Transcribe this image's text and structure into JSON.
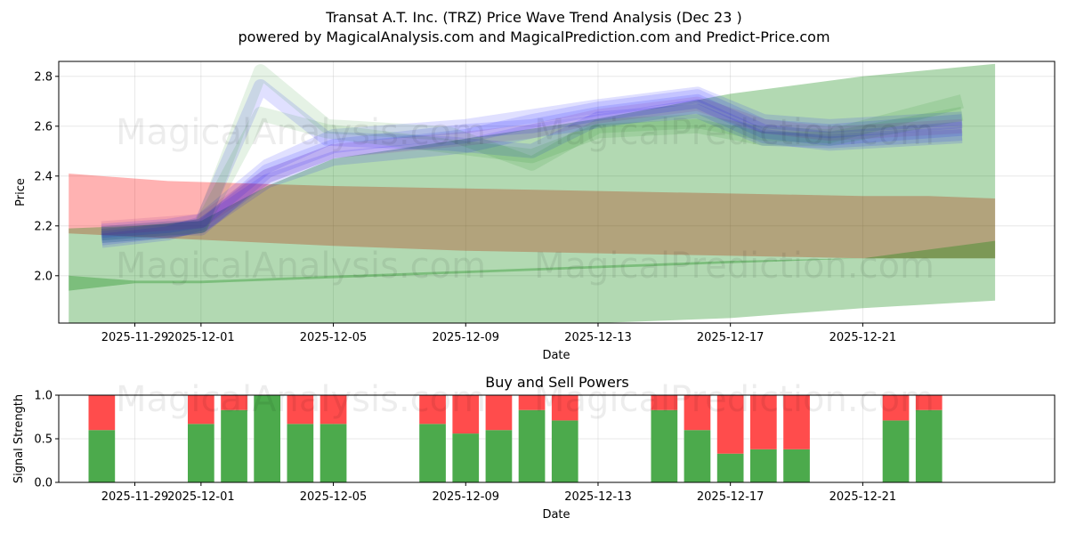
{
  "chart_data": [
    {
      "type": "area",
      "title_line1": "Transat A.T. Inc. (TRZ) Price Wave Trend Analysis (Dec 23 )",
      "title_line2": "powered by MagicalAnalysis.com and MagicalPrediction.com and Predict-Price.com",
      "xlabel": "Date",
      "ylabel": "Price",
      "ylim": [
        1.81,
        2.86
      ],
      "yticks": [
        2.0,
        2.2,
        2.4,
        2.6,
        2.8
      ],
      "ytick_labels": [
        "2.0",
        "2.2",
        "2.4",
        "2.6",
        "2.8"
      ],
      "xlim_days": [
        -4.3,
        25.8
      ],
      "xticks_days": [
        -2,
        0,
        4,
        8,
        12,
        16,
        20
      ],
      "xtick_labels": [
        "2025-11-29",
        "2025-12-01",
        "2025-12-05",
        "2025-12-09",
        "2025-12-13",
        "2025-12-17",
        "2025-12-21"
      ],
      "day_zero": "2025-12-01",
      "grid": true,
      "watermarks": [
        "MagicalAnalysis.com",
        "MagicalPrediction.com"
      ],
      "bands": [
        {
          "name": "sell-band",
          "color": "#ff0000",
          "opacity": 0.3,
          "x": [
            -4,
            -1,
            4,
            8,
            12,
            16,
            20,
            22,
            24
          ],
          "upper": [
            2.41,
            2.38,
            2.36,
            2.35,
            2.34,
            2.33,
            2.32,
            2.32,
            2.31
          ],
          "lower": [
            2.17,
            2.15,
            2.12,
            2.1,
            2.09,
            2.08,
            2.07,
            2.07,
            2.07
          ]
        },
        {
          "name": "buy-band-wide",
          "color": "#008000",
          "opacity": 0.3,
          "x": [
            -4,
            -2,
            0,
            2,
            4,
            8,
            12,
            16,
            20,
            24
          ],
          "upper": [
            2.19,
            2.2,
            2.22,
            2.36,
            2.47,
            2.55,
            2.63,
            2.73,
            2.8,
            2.85
          ],
          "lower": [
            1.8,
            1.8,
            1.8,
            1.8,
            1.8,
            1.8,
            1.8,
            1.83,
            1.87,
            1.9
          ]
        },
        {
          "name": "buy-band-low",
          "color": "#008000",
          "opacity": 0.3,
          "x": [
            -4,
            -2,
            0,
            4,
            8,
            12,
            16,
            20,
            24
          ],
          "upper": [
            2.0,
            1.98,
            1.98,
            2.0,
            2.02,
            2.04,
            2.06,
            2.07,
            2.14
          ],
          "lower": [
            1.94,
            1.97,
            1.97,
            1.99,
            2.01,
            2.03,
            2.05,
            2.07,
            2.07
          ]
        }
      ],
      "wave_series": [
        {
          "name": "wave-1",
          "color": "#0000ff",
          "opacity": 0.12,
          "x": [
            -3,
            -1,
            0,
            2,
            4,
            8,
            10,
            12,
            15,
            17,
            19,
            23
          ],
          "y": [
            2.15,
            2.18,
            2.2,
            2.4,
            2.5,
            2.56,
            2.62,
            2.67,
            2.72,
            2.6,
            2.58,
            2.62
          ]
        },
        {
          "name": "wave-2",
          "color": "#0000ff",
          "opacity": 0.12,
          "x": [
            -3,
            -1,
            0,
            2,
            4,
            8,
            10,
            12,
            15,
            17,
            19,
            23
          ],
          "y": [
            2.17,
            2.19,
            2.19,
            2.42,
            2.52,
            2.58,
            2.6,
            2.65,
            2.7,
            2.58,
            2.55,
            2.59
          ]
        },
        {
          "name": "wave-3",
          "color": "#0000ff",
          "opacity": 0.12,
          "x": [
            -3,
            -1,
            0,
            1.8,
            3.8,
            7.5,
            10,
            12,
            15,
            17,
            19,
            23
          ],
          "y": [
            2.14,
            2.17,
            2.21,
            2.76,
            2.55,
            2.53,
            2.5,
            2.63,
            2.66,
            2.55,
            2.54,
            2.57
          ]
        },
        {
          "name": "wave-4",
          "color": "#0000ff",
          "opacity": 0.12,
          "x": [
            -3,
            -1,
            0,
            2,
            4,
            8,
            10,
            12,
            15,
            17,
            19,
            23
          ],
          "y": [
            2.18,
            2.2,
            2.22,
            2.44,
            2.56,
            2.6,
            2.64,
            2.68,
            2.73,
            2.62,
            2.6,
            2.63
          ]
        },
        {
          "name": "wave-5",
          "color": "#0000ff",
          "opacity": 0.12,
          "x": [
            -3,
            -1,
            0,
            2,
            4,
            8,
            10,
            12,
            15,
            17,
            19,
            23
          ],
          "y": [
            2.16,
            2.18,
            2.2,
            2.38,
            2.47,
            2.52,
            2.58,
            2.62,
            2.68,
            2.56,
            2.53,
            2.56
          ]
        },
        {
          "name": "wave-6",
          "color": "#008000",
          "opacity": 0.1,
          "x": [
            -3,
            -1,
            0,
            1.8,
            3.8,
            7.5,
            10,
            12,
            15,
            17,
            19,
            23
          ],
          "y": [
            2.17,
            2.19,
            2.2,
            2.82,
            2.6,
            2.57,
            2.45,
            2.6,
            2.62,
            2.57,
            2.56,
            2.7
          ]
        },
        {
          "name": "wave-7",
          "color": "#008000",
          "opacity": 0.1,
          "x": [
            -3,
            -1,
            0,
            1.8,
            3.8,
            7.5,
            10,
            12,
            15,
            17,
            19,
            23
          ],
          "y": [
            2.16,
            2.18,
            2.2,
            2.65,
            2.58,
            2.52,
            2.48,
            2.58,
            2.6,
            2.55,
            2.55,
            2.65
          ]
        },
        {
          "name": "wave-8",
          "color": "#800080",
          "opacity": 0.1,
          "x": [
            -3,
            -1,
            0,
            2,
            4,
            8,
            10,
            12,
            15,
            17,
            19,
            23
          ],
          "y": [
            2.19,
            2.21,
            2.22,
            2.4,
            2.5,
            2.55,
            2.58,
            2.64,
            2.69,
            2.6,
            2.57,
            2.6
          ]
        }
      ]
    },
    {
      "type": "bar",
      "title": "Buy and Sell Powers",
      "xlabel": "Date",
      "ylabel": "Signal Strength",
      "ylim": [
        0,
        1
      ],
      "yticks": [
        0.0,
        0.5,
        1.0
      ],
      "ytick_labels": [
        "0.0",
        "0.5",
        "1.0"
      ],
      "xlim_days": [
        -4.3,
        25.8
      ],
      "xticks_days": [
        -2,
        0,
        4,
        8,
        12,
        16,
        20
      ],
      "xtick_labels": [
        "2025-11-29",
        "2025-12-01",
        "2025-12-05",
        "2025-12-09",
        "2025-12-13",
        "2025-12-17",
        "2025-12-21"
      ],
      "grid": true,
      "series": [
        {
          "name": "Buy",
          "color": "#4caa4c"
        },
        {
          "name": "Sell",
          "color": "#ff4c4c"
        }
      ],
      "bars": [
        {
          "day": -3,
          "buy": 0.6
        },
        {
          "day": 0,
          "buy": 0.67
        },
        {
          "day": 1,
          "buy": 0.83
        },
        {
          "day": 2,
          "buy": 1.0
        },
        {
          "day": 3,
          "buy": 0.67
        },
        {
          "day": 4,
          "buy": 0.67
        },
        {
          "day": 7,
          "buy": 0.67
        },
        {
          "day": 8,
          "buy": 0.56
        },
        {
          "day": 9,
          "buy": 0.6
        },
        {
          "day": 10,
          "buy": 0.83
        },
        {
          "day": 11,
          "buy": 0.71
        },
        {
          "day": 14,
          "buy": 0.83
        },
        {
          "day": 15,
          "buy": 0.6
        },
        {
          "day": 16,
          "buy": 0.33
        },
        {
          "day": 17,
          "buy": 0.38
        },
        {
          "day": 18,
          "buy": 0.38
        },
        {
          "day": 21,
          "buy": 0.71
        },
        {
          "day": 22,
          "buy": 0.83
        }
      ]
    }
  ]
}
